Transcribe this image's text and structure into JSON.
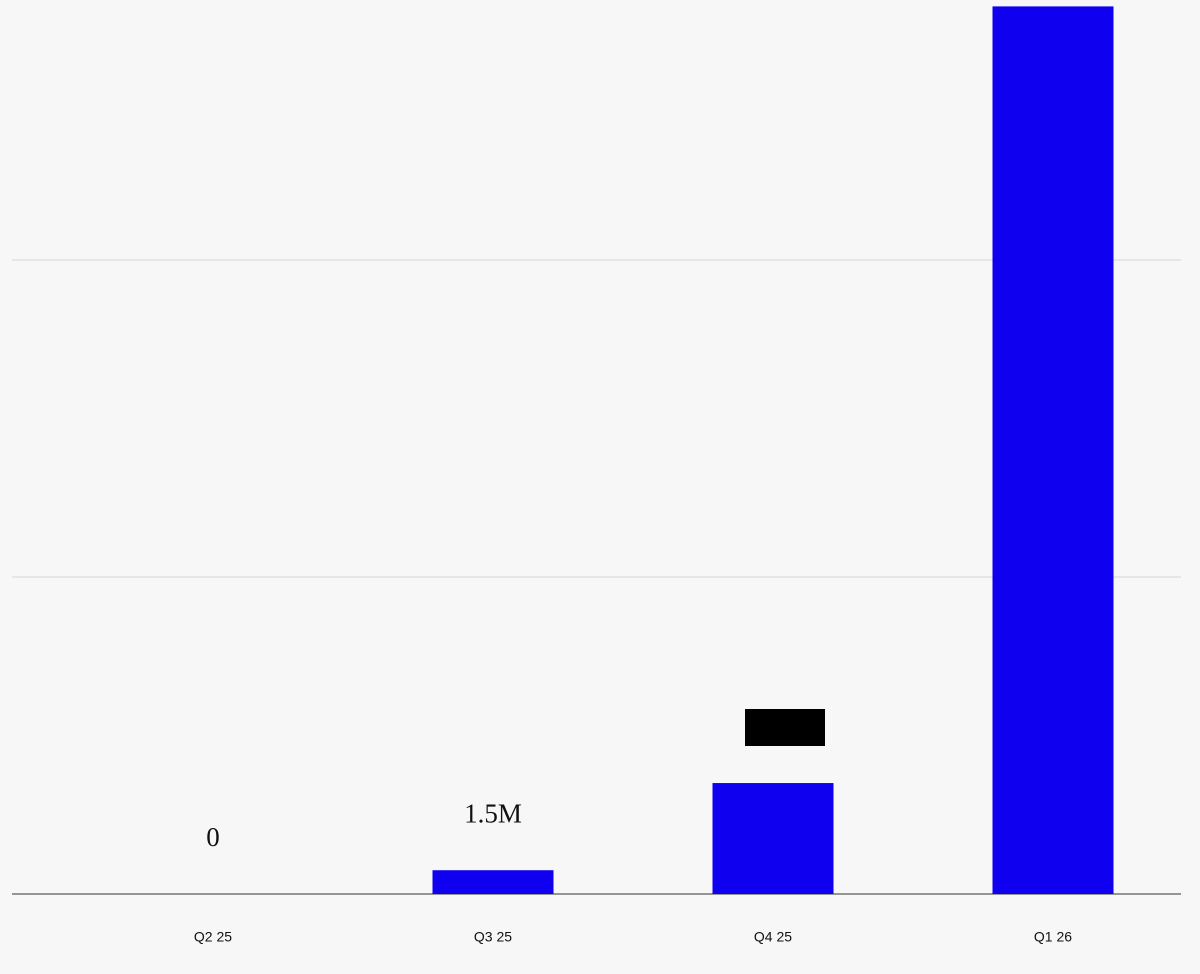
{
  "chart_data": {
    "type": "bar",
    "categories": [
      "Q2 25",
      "Q3 25",
      "Q4 25",
      "Q1 26"
    ],
    "values": [
      0,
      1.5,
      7,
      56
    ],
    "value_labels": [
      "0",
      "1.5M",
      null,
      null
    ],
    "color": "#1000f0",
    "ylim": [
      0,
      56
    ],
    "yticks": [
      0,
      20,
      40
    ],
    "grid": true
  }
}
